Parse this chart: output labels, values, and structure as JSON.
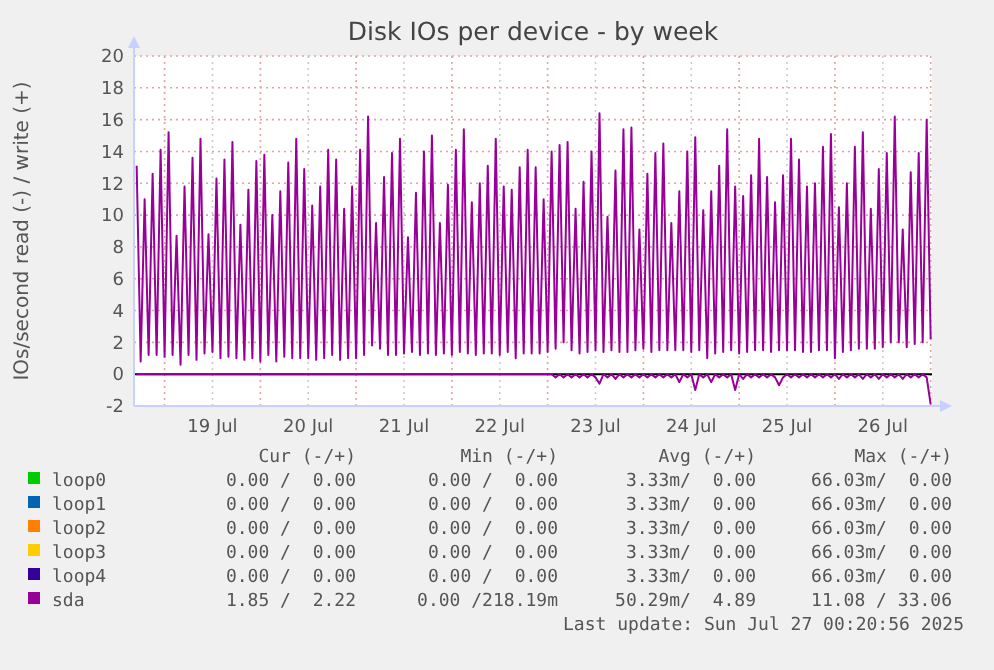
{
  "chart_data": {
    "type": "line",
    "title": "Disk IOs per device - by week",
    "ylabel": "IOs/second read (-) / write (+)",
    "xlim": [
      "2025-07-18T16:20",
      "2025-07-27T00:20"
    ],
    "xticks": [
      {
        "value": "2025-07-19T00:00",
        "label": null
      },
      {
        "value": "2025-07-19T12:00",
        "label": "19 Jul"
      },
      {
        "value": "2025-07-20T00:00",
        "label": null
      },
      {
        "value": "2025-07-20T12:00",
        "label": "20 Jul"
      },
      {
        "value": "2025-07-21T00:00",
        "label": null
      },
      {
        "value": "2025-07-21T12:00",
        "label": "21 Jul"
      },
      {
        "value": "2025-07-22T00:00",
        "label": null
      },
      {
        "value": "2025-07-22T12:00",
        "label": "22 Jul"
      },
      {
        "value": "2025-07-23T00:00",
        "label": null
      },
      {
        "value": "2025-07-23T12:00",
        "label": "23 Jul"
      },
      {
        "value": "2025-07-24T00:00",
        "label": null
      },
      {
        "value": "2025-07-24T12:00",
        "label": "24 Jul"
      },
      {
        "value": "2025-07-25T00:00",
        "label": null
      },
      {
        "value": "2025-07-25T12:00",
        "label": "25 Jul"
      },
      {
        "value": "2025-07-26T00:00",
        "label": null
      },
      {
        "value": "2025-07-26T12:00",
        "label": "26 Jul"
      },
      {
        "value": "2025-07-27T00:00",
        "label": null
      }
    ],
    "ylim": [
      -2,
      20
    ],
    "yticks": [
      -2,
      0,
      2,
      4,
      6,
      8,
      10,
      12,
      14,
      16,
      18,
      20
    ],
    "grid": true,
    "legend": "bottom",
    "ref_lines": [
      {
        "axis": "y",
        "value": 0,
        "color": "#000000"
      }
    ],
    "x": [
      "2025-07-18T17:00",
      "2025-07-18T18:00",
      "2025-07-18T19:00",
      "2025-07-18T20:00",
      "2025-07-18T21:00",
      "2025-07-18T22:00",
      "2025-07-18T23:00",
      "2025-07-19T00:00",
      "2025-07-19T01:00",
      "2025-07-19T02:00",
      "2025-07-19T03:00",
      "2025-07-19T04:00",
      "2025-07-19T05:00",
      "2025-07-19T06:00",
      "2025-07-19T07:00",
      "2025-07-19T08:00",
      "2025-07-19T09:00",
      "2025-07-19T10:00",
      "2025-07-19T11:00",
      "2025-07-19T12:00",
      "2025-07-19T13:00",
      "2025-07-19T14:00",
      "2025-07-19T15:00",
      "2025-07-19T16:00",
      "2025-07-19T17:00",
      "2025-07-19T18:00",
      "2025-07-19T19:00",
      "2025-07-19T20:00",
      "2025-07-19T21:00",
      "2025-07-19T22:00",
      "2025-07-19T23:00",
      "2025-07-20T00:00",
      "2025-07-20T01:00",
      "2025-07-20T02:00",
      "2025-07-20T03:00",
      "2025-07-20T04:00",
      "2025-07-20T05:00",
      "2025-07-20T06:00",
      "2025-07-20T07:00",
      "2025-07-20T08:00",
      "2025-07-20T09:00",
      "2025-07-20T10:00",
      "2025-07-20T11:00",
      "2025-07-20T12:00",
      "2025-07-20T13:00",
      "2025-07-20T14:00",
      "2025-07-20T15:00",
      "2025-07-20T16:00",
      "2025-07-20T17:00",
      "2025-07-20T18:00",
      "2025-07-20T19:00",
      "2025-07-20T20:00",
      "2025-07-20T21:00",
      "2025-07-20T22:00",
      "2025-07-20T23:00",
      "2025-07-21T00:00",
      "2025-07-21T01:00",
      "2025-07-21T02:00",
      "2025-07-21T03:00",
      "2025-07-21T04:00",
      "2025-07-21T05:00",
      "2025-07-21T06:00",
      "2025-07-21T07:00",
      "2025-07-21T08:00",
      "2025-07-21T09:00",
      "2025-07-21T10:00",
      "2025-07-21T11:00",
      "2025-07-21T12:00",
      "2025-07-21T13:00",
      "2025-07-21T14:00",
      "2025-07-21T15:00",
      "2025-07-21T16:00",
      "2025-07-21T17:00",
      "2025-07-21T18:00",
      "2025-07-21T19:00",
      "2025-07-21T20:00",
      "2025-07-21T21:00",
      "2025-07-21T22:00",
      "2025-07-21T23:00",
      "2025-07-22T00:00",
      "2025-07-22T01:00",
      "2025-07-22T02:00",
      "2025-07-22T03:00",
      "2025-07-22T04:00",
      "2025-07-22T05:00",
      "2025-07-22T06:00",
      "2025-07-22T07:00",
      "2025-07-22T08:00",
      "2025-07-22T09:00",
      "2025-07-22T10:00",
      "2025-07-22T11:00",
      "2025-07-22T12:00",
      "2025-07-22T13:00",
      "2025-07-22T14:00",
      "2025-07-22T15:00",
      "2025-07-22T16:00",
      "2025-07-22T17:00",
      "2025-07-22T18:00",
      "2025-07-22T19:00",
      "2025-07-22T20:00",
      "2025-07-22T21:00",
      "2025-07-22T22:00",
      "2025-07-22T23:00",
      "2025-07-23T00:00",
      "2025-07-23T01:00",
      "2025-07-23T02:00",
      "2025-07-23T03:00",
      "2025-07-23T04:00",
      "2025-07-23T05:00",
      "2025-07-23T06:00",
      "2025-07-23T07:00",
      "2025-07-23T08:00",
      "2025-07-23T09:00",
      "2025-07-23T10:00",
      "2025-07-23T11:00",
      "2025-07-23T12:00",
      "2025-07-23T13:00",
      "2025-07-23T14:00",
      "2025-07-23T15:00",
      "2025-07-23T16:00",
      "2025-07-23T17:00",
      "2025-07-23T18:00",
      "2025-07-23T19:00",
      "2025-07-23T20:00",
      "2025-07-23T21:00",
      "2025-07-23T22:00",
      "2025-07-23T23:00",
      "2025-07-24T00:00",
      "2025-07-24T01:00",
      "2025-07-24T02:00",
      "2025-07-24T03:00",
      "2025-07-24T04:00",
      "2025-07-24T05:00",
      "2025-07-24T06:00",
      "2025-07-24T07:00",
      "2025-07-24T08:00",
      "2025-07-24T09:00",
      "2025-07-24T10:00",
      "2025-07-24T11:00",
      "2025-07-24T12:00",
      "2025-07-24T13:00",
      "2025-07-24T14:00",
      "2025-07-24T15:00",
      "2025-07-24T16:00",
      "2025-07-24T17:00",
      "2025-07-24T18:00",
      "2025-07-24T19:00",
      "2025-07-24T20:00",
      "2025-07-24T21:00",
      "2025-07-24T22:00",
      "2025-07-24T23:00",
      "2025-07-25T00:00",
      "2025-07-25T01:00",
      "2025-07-25T02:00",
      "2025-07-25T03:00",
      "2025-07-25T04:00",
      "2025-07-25T05:00",
      "2025-07-25T06:00",
      "2025-07-25T07:00",
      "2025-07-25T08:00",
      "2025-07-25T09:00",
      "2025-07-25T10:00",
      "2025-07-25T11:00",
      "2025-07-25T12:00",
      "2025-07-25T13:00",
      "2025-07-25T14:00",
      "2025-07-25T15:00",
      "2025-07-25T16:00",
      "2025-07-25T17:00",
      "2025-07-25T18:00",
      "2025-07-25T19:00",
      "2025-07-25T20:00",
      "2025-07-25T21:00",
      "2025-07-25T22:00",
      "2025-07-25T23:00",
      "2025-07-26T00:00",
      "2025-07-26T01:00",
      "2025-07-26T02:00",
      "2025-07-26T03:00",
      "2025-07-26T04:00",
      "2025-07-26T05:00",
      "2025-07-26T06:00",
      "2025-07-26T07:00",
      "2025-07-26T08:00",
      "2025-07-26T09:00",
      "2025-07-26T10:00",
      "2025-07-26T11:00",
      "2025-07-26T12:00",
      "2025-07-26T13:00",
      "2025-07-26T14:00",
      "2025-07-26T15:00",
      "2025-07-26T16:00",
      "2025-07-26T17:00",
      "2025-07-26T18:00",
      "2025-07-26T19:00",
      "2025-07-26T20:00",
      "2025-07-26T21:00",
      "2025-07-26T22:00",
      "2025-07-26T23:00",
      "2025-07-27T00:00"
    ],
    "series": [
      {
        "name": "loop0",
        "color": "#00cc00",
        "values": [
          null,
          null,
          null,
          null,
          null,
          null,
          null,
          null,
          null,
          null,
          null,
          null,
          null,
          null,
          null,
          null,
          null,
          null,
          null,
          null,
          null,
          null,
          null,
          null,
          null,
          null,
          null,
          null,
          null,
          null,
          null,
          null,
          null,
          null,
          null,
          null,
          null,
          null,
          null,
          null,
          null,
          null,
          null,
          null,
          null,
          null,
          null,
          null,
          null,
          null,
          null,
          null,
          null,
          null,
          null,
          null,
          null,
          null,
          null,
          null,
          null,
          null,
          null,
          null,
          null,
          null,
          null,
          null,
          null,
          null,
          null,
          null,
          null,
          null,
          null,
          null,
          null,
          null,
          null,
          null,
          null,
          null,
          null,
          null,
          null,
          null,
          null,
          null,
          null,
          null,
          null,
          null,
          null,
          null,
          null,
          null,
          null,
          null,
          null,
          null,
          null,
          null,
          null,
          null,
          null,
          null,
          null,
          null,
          null,
          null,
          null,
          null,
          null,
          null,
          null,
          null,
          null,
          null,
          null,
          null,
          null,
          null,
          null,
          null,
          null,
          null,
          null,
          null,
          null,
          null,
          null,
          null,
          null,
          null,
          null,
          null,
          null,
          null,
          null,
          null,
          null,
          null,
          null,
          null,
          null,
          null,
          null,
          null,
          null,
          null,
          null,
          null,
          null,
          null,
          null,
          null,
          null,
          null,
          null,
          null,
          null,
          null,
          null,
          null,
          null,
          null,
          null,
          null,
          null,
          null,
          null,
          null,
          null,
          null,
          null,
          null,
          null,
          null,
          null,
          null,
          null,
          null,
          null,
          null,
          null,
          null,
          null,
          null,
          null,
          null,
          null,
          null,
          null,
          null,
          null,
          null,
          null,
          null,
          null,
          null
        ]
      },
      {
        "name": "loop1",
        "color": "#0066b3",
        "values": [
          null,
          null,
          null,
          null,
          null,
          null,
          null,
          null,
          null,
          null,
          null,
          null,
          null,
          null,
          null,
          null,
          null,
          null,
          null,
          null,
          null,
          null,
          null,
          null,
          null,
          null,
          null,
          null,
          null,
          null,
          null,
          null,
          null,
          null,
          null,
          null,
          null,
          null,
          null,
          null,
          null,
          null,
          null,
          null,
          null,
          null,
          null,
          null,
          null,
          null,
          null,
          null,
          null,
          null,
          null,
          null,
          null,
          null,
          null,
          null,
          null,
          null,
          null,
          null,
          null,
          null,
          null,
          null,
          null,
          null,
          null,
          null,
          null,
          null,
          null,
          null,
          null,
          null,
          null,
          null,
          null,
          null,
          null,
          null,
          null,
          null,
          null,
          null,
          null,
          null,
          null,
          null,
          null,
          null,
          null,
          null,
          null,
          null,
          null,
          null,
          null,
          null,
          null,
          null,
          null,
          null,
          null,
          null,
          null,
          null,
          null,
          null,
          null,
          null,
          null,
          null,
          null,
          null,
          null,
          null,
          null,
          null,
          null,
          null,
          null,
          null,
          null,
          null,
          null,
          null,
          null,
          null,
          null,
          null,
          null,
          null,
          null,
          null,
          null,
          null,
          null,
          null,
          null,
          null,
          null,
          null,
          null,
          null,
          null,
          null,
          null,
          null,
          null,
          null,
          null,
          null,
          null,
          null,
          null,
          null,
          null,
          null,
          null,
          null,
          null,
          null,
          null,
          null,
          null,
          null,
          null,
          null,
          null,
          null,
          null,
          null,
          null,
          null,
          null,
          null,
          null,
          null,
          null,
          null,
          null,
          null,
          null,
          null,
          null,
          null,
          null,
          null,
          null,
          null,
          null,
          null,
          null,
          null,
          null,
          null
        ]
      },
      {
        "name": "loop2",
        "color": "#ff8000",
        "values": [
          null,
          null,
          null,
          null,
          null,
          null,
          null,
          null,
          null,
          null,
          null,
          null,
          null,
          null,
          null,
          null,
          null,
          null,
          null,
          null,
          null,
          null,
          null,
          null,
          null,
          null,
          null,
          null,
          null,
          null,
          null,
          null,
          null,
          null,
          null,
          null,
          null,
          null,
          null,
          null,
          null,
          null,
          null,
          null,
          null,
          null,
          null,
          null,
          null,
          null,
          null,
          null,
          null,
          null,
          null,
          null,
          null,
          null,
          null,
          null,
          null,
          null,
          null,
          null,
          null,
          null,
          null,
          null,
          null,
          null,
          null,
          null,
          null,
          null,
          null,
          null,
          null,
          null,
          null,
          null,
          null,
          null,
          null,
          null,
          null,
          null,
          null,
          null,
          null,
          null,
          null,
          null,
          null,
          null,
          null,
          null,
          null,
          null,
          null,
          null,
          null,
          null,
          null,
          null,
          null,
          null,
          null,
          null,
          null,
          null,
          null,
          null,
          null,
          null,
          null,
          null,
          null,
          null,
          null,
          null,
          null,
          null,
          null,
          null,
          null,
          null,
          null,
          null,
          null,
          null,
          null,
          null,
          null,
          null,
          null,
          null,
          null,
          null,
          null,
          null,
          null,
          null,
          null,
          null,
          null,
          null,
          null,
          null,
          null,
          null,
          null,
          null,
          null,
          null,
          null,
          null,
          null,
          null,
          null,
          null,
          null,
          null,
          null,
          null,
          null,
          null,
          null,
          null,
          null,
          null,
          null,
          null,
          null,
          null,
          null,
          null,
          null,
          null,
          null,
          null,
          null,
          null,
          null,
          null,
          null,
          null,
          null,
          null,
          null,
          null,
          null,
          null,
          null,
          null,
          null,
          null,
          null,
          null,
          null,
          null
        ]
      },
      {
        "name": "loop3",
        "color": "#ffcc00",
        "values": [
          null,
          null,
          null,
          null,
          null,
          null,
          null,
          null,
          null,
          null,
          null,
          null,
          null,
          null,
          null,
          null,
          null,
          null,
          null,
          null,
          null,
          null,
          null,
          null,
          null,
          null,
          null,
          null,
          null,
          null,
          null,
          null,
          null,
          null,
          null,
          null,
          null,
          null,
          null,
          null,
          null,
          null,
          null,
          null,
          null,
          null,
          null,
          null,
          null,
          null,
          null,
          null,
          null,
          null,
          null,
          null,
          null,
          null,
          null,
          null,
          null,
          null,
          null,
          null,
          null,
          null,
          null,
          null,
          null,
          null,
          null,
          null,
          null,
          null,
          null,
          null,
          null,
          null,
          null,
          null,
          null,
          null,
          null,
          null,
          null,
          null,
          null,
          null,
          null,
          null,
          null,
          null,
          null,
          null,
          null,
          null,
          null,
          null,
          null,
          null,
          null,
          null,
          null,
          null,
          null,
          null,
          null,
          null,
          null,
          null,
          null,
          null,
          null,
          null,
          null,
          null,
          null,
          null,
          null,
          null,
          null,
          null,
          null,
          null,
          null,
          null,
          null,
          null,
          null,
          null,
          null,
          null,
          null,
          null,
          null,
          null,
          null,
          null,
          null,
          null,
          null,
          null,
          null,
          null,
          null,
          null,
          null,
          null,
          null,
          null,
          null,
          null,
          null,
          null,
          null,
          null,
          null,
          null,
          null,
          null,
          null,
          null,
          null,
          null,
          null,
          null,
          null,
          null,
          null,
          null,
          null,
          null,
          null,
          null,
          null,
          null,
          null,
          null,
          null,
          null,
          null,
          null,
          null,
          null,
          null,
          null,
          null,
          null,
          null,
          null,
          null,
          null,
          null,
          null,
          null,
          null,
          null,
          null,
          null,
          null
        ]
      },
      {
        "name": "loop4",
        "color": "#330099",
        "values": [
          null,
          null,
          null,
          null,
          null,
          null,
          null,
          null,
          null,
          null,
          null,
          null,
          null,
          null,
          null,
          null,
          null,
          null,
          null,
          null,
          null,
          null,
          null,
          null,
          null,
          null,
          null,
          null,
          null,
          null,
          null,
          null,
          null,
          null,
          null,
          null,
          null,
          null,
          null,
          null,
          null,
          null,
          null,
          null,
          null,
          null,
          null,
          null,
          null,
          null,
          null,
          null,
          null,
          null,
          null,
          null,
          null,
          null,
          null,
          null,
          null,
          null,
          null,
          null,
          null,
          null,
          null,
          null,
          null,
          null,
          null,
          null,
          null,
          null,
          null,
          null,
          null,
          null,
          null,
          null,
          null,
          null,
          null,
          null,
          null,
          null,
          null,
          null,
          null,
          null,
          null,
          null,
          null,
          null,
          null,
          null,
          null,
          null,
          null,
          null,
          null,
          null,
          null,
          null,
          null,
          null,
          null,
          null,
          null,
          null,
          null,
          null,
          null,
          null,
          null,
          null,
          null,
          null,
          null,
          null,
          null,
          null,
          null,
          null,
          null,
          null,
          null,
          null,
          null,
          null,
          null,
          null,
          null,
          null,
          null,
          null,
          null,
          null,
          null,
          null,
          null,
          null,
          null,
          null,
          null,
          null,
          null,
          null,
          null,
          null,
          null,
          null,
          null,
          null,
          null,
          null,
          null,
          null,
          null,
          null,
          null,
          null,
          null,
          null,
          null,
          null,
          null,
          null,
          null,
          null,
          null,
          null,
          null,
          null,
          null,
          null,
          null,
          null,
          null,
          null,
          null,
          null,
          null,
          null,
          null,
          null,
          null,
          null,
          null,
          null,
          null,
          null,
          null,
          null,
          null,
          null,
          null,
          null,
          null,
          null
        ]
      },
      {
        "color": "#990099",
        "values": [
          0,
          0,
          0,
          0,
          0,
          0,
          0,
          0,
          0,
          0,
          0,
          0,
          0,
          0,
          0,
          0,
          0,
          0,
          0,
          0,
          0,
          0,
          0,
          0,
          0,
          0,
          0,
          0,
          0,
          0,
          0,
          0,
          0,
          0,
          0,
          0,
          0,
          0,
          0,
          0,
          0,
          0,
          0,
          0,
          0,
          0,
          0,
          0,
          0,
          0,
          0,
          0,
          0,
          0,
          0,
          0,
          0,
          0,
          0,
          0,
          0,
          0,
          0,
          0,
          0,
          0,
          0,
          0,
          0,
          0,
          0,
          0,
          0,
          0,
          0,
          0,
          0,
          0,
          0,
          0,
          0,
          0,
          0,
          0,
          0,
          0,
          0,
          0,
          0,
          0,
          0,
          0,
          0,
          0,
          0,
          0,
          0,
          0,
          0,
          0,
          0,
          0,
          0,
          0,
          0,
          -0.2,
          0,
          -0.2,
          0,
          -0.2,
          0,
          -0.2,
          0,
          -0.2,
          0,
          -0.2,
          -0.6,
          0,
          -0.2,
          0,
          -0.3,
          0,
          -0.2,
          0,
          -0.2,
          0,
          -0.2,
          0,
          -0.2,
          0,
          -0.2,
          0,
          -0.2,
          0,
          -0.2,
          0,
          -0.5,
          0,
          -0.2,
          0,
          -1.0,
          0,
          -0.2,
          0,
          -0.5,
          0,
          -0.2,
          0,
          -0.2,
          0,
          -1.0,
          0,
          -0.3,
          0,
          -0.2,
          0,
          -0.2,
          0,
          -0.2,
          0,
          -0.2,
          -0.7,
          -0.2,
          0,
          -0.2,
          0,
          -0.2,
          0,
          -0.2,
          0,
          -0.2,
          0,
          -0.2,
          0,
          -0.2,
          0,
          -0.3,
          0,
          -0.2,
          0,
          -0.2,
          0,
          -0.3,
          0,
          -0.2,
          0,
          -0.3,
          0,
          -0.2,
          0,
          -0.2,
          0,
          -0.3,
          0,
          -0.2,
          0,
          -0.2,
          0,
          -0.2,
          -1.9
        ]
      },
      {
        "name": "sda",
        "color": "#990099",
        "values": [
          13.1,
          0.8,
          11.0,
          1.2,
          12.6,
          1.2,
          14.1,
          1.1,
          15.2,
          1.2,
          8.7,
          0.6,
          11.8,
          1.2,
          13.6,
          0.9,
          14.8,
          1.3,
          8.8,
          1.4,
          12.3,
          1.0,
          13.5,
          1.1,
          14.6,
          1.0,
          9.4,
          0.9,
          11.6,
          1.0,
          13.4,
          0.8,
          13.8,
          1.2,
          10.0,
          0.8,
          11.5,
          1.1,
          13.3,
          1.0,
          14.8,
          1.0,
          12.9,
          1.0,
          10.6,
          0.9,
          11.8,
          1.0,
          14.1,
          1.2,
          13.5,
          0.9,
          10.4,
          1.0,
          11.8,
          1.0,
          14.1,
          1.2,
          16.2,
          1.8,
          9.5,
          1.6,
          12.4,
          1.2,
          13.9,
          1.2,
          14.8,
          1.3,
          8.6,
          1.4,
          11.4,
          1.2,
          14.0,
          1.3,
          15.0,
          1.2,
          9.5,
          1.3,
          11.9,
          1.2,
          14.1,
          1.4,
          15.4,
          1.3,
          10.8,
          1.2,
          12.0,
          1.3,
          13.1,
          1.3,
          14.8,
          1.2,
          11.8,
          1.4,
          11.6,
          1.0,
          13.0,
          1.3,
          14.1,
          1.3,
          13.0,
          1.3,
          11.0,
          1.4,
          14.0,
          1.6,
          14.4,
          2.0,
          14.6,
          1.5,
          10.4,
          1.3,
          12.1,
          1.4,
          14.0,
          1.5,
          16.4,
          1.4,
          9.9,
          1.5,
          12.8,
          1.4,
          15.4,
          1.4,
          15.5,
          1.5,
          9.1,
          1.6,
          12.6,
          1.4,
          13.9,
          1.5,
          14.5,
          1.5,
          9.5,
          1.5,
          11.5,
          1.5,
          14.0,
          1.4,
          14.9,
          1.5,
          10.3,
          1.0,
          11.5,
          1.3,
          13.1,
          1.4,
          15.4,
          1.5,
          11.8,
          1.3,
          11.2,
          1.4,
          12.5,
          1.5,
          14.8,
          1.5,
          12.4,
          1.4,
          10.8,
          1.5,
          12.5,
          1.5,
          14.8,
          1.5,
          13.5,
          1.4,
          11.8,
          1.4,
          12.0,
          1.5,
          14.3,
          1.5,
          15.1,
          1.0,
          10.5,
          1.4,
          12.0,
          1.5,
          14.3,
          1.6,
          15.2,
          1.6,
          10.4,
          1.6,
          12.9,
          1.7,
          13.9,
          2.0,
          16.2,
          2.0,
          9.1,
          1.7,
          12.7,
          1.9,
          13.9,
          2.0,
          16.0,
          2.2
        ]
      }
    ],
    "annotations": [
      "Cur (-/+)",
      "Min (-/+)",
      "Avg (-/+)",
      "Max (-/+)",
      "0.00 /  0.00",
      "0.00 /  0.00",
      "3.33m/  0.00",
      "66.03m/  0.00",
      "0.00 /  0.00",
      "0.00 /  0.00",
      "3.33m/  0.00",
      "66.03m/  0.00",
      "0.00 /  0.00",
      "0.00 /  0.00",
      "3.33m/  0.00",
      "66.03m/  0.00",
      "0.00 /  0.00",
      "0.00 /  0.00",
      "3.33m/  0.00",
      "66.03m/  0.00",
      "0.00 /  0.00",
      "0.00 /  0.00",
      "3.33m/  0.00",
      "66.03m/  0.00",
      "1.85 /  2.22",
      "0.00 /218.19m",
      "50.29m/  4.89",
      "11.08 / 33.06",
      "Last update: Sun Jul 27 00:20:56 2025"
    ]
  }
}
